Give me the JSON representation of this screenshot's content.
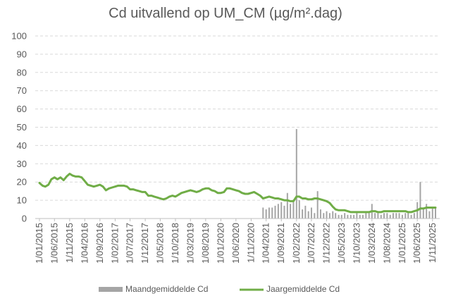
{
  "chart_data": {
    "type": "bar+line",
    "title": "Cd uitvallend op UM_CM (µg/m².dag)",
    "xlabel": "",
    "ylabel": "",
    "ylim": [
      0,
      100
    ],
    "y_ticks": [
      0,
      10,
      20,
      30,
      40,
      50,
      60,
      70,
      80,
      90,
      100
    ],
    "x_range": [
      "2015-01-01",
      "2025-12-01"
    ],
    "x_tick_labels": [
      "1/01/2015",
      "1/06/2015",
      "1/11/2015",
      "1/04/2016",
      "1/09/2016",
      "1/02/2017",
      "1/07/2017",
      "1/12/2017",
      "1/05/2018",
      "1/10/2018",
      "1/03/2019",
      "1/08/2019",
      "1/01/2020",
      "1/06/2020",
      "1/11/2020",
      "1/04/2021",
      "1/09/2021",
      "1/02/2022",
      "1/07/2022",
      "1/12/2022",
      "1/05/2023",
      "1/10/2023",
      "1/03/2024",
      "1/08/2024",
      "1/01/2025",
      "1/06/2025",
      "1/11/2025"
    ],
    "grid": "horizontal dashed",
    "legend": "bottom",
    "colors": {
      "bar": "#a5a5a5",
      "line": "#70ad47",
      "grid": "#d9d9d9",
      "axis": "#bfbfbf"
    },
    "series": [
      {
        "name": "Maandgemiddelde Cd",
        "kind": "bar",
        "points": [
          [
            "2021-03-01",
            6
          ],
          [
            "2021-04-01",
            5
          ],
          [
            "2021-05-01",
            6
          ],
          [
            "2021-06-01",
            6
          ],
          [
            "2021-07-01",
            7
          ],
          [
            "2021-08-01",
            8
          ],
          [
            "2021-09-01",
            9
          ],
          [
            "2021-10-01",
            7
          ],
          [
            "2021-11-01",
            14
          ],
          [
            "2021-12-01",
            8
          ],
          [
            "2022-01-01",
            9
          ],
          [
            "2022-02-01",
            49
          ],
          [
            "2022-03-01",
            10
          ],
          [
            "2022-04-01",
            5
          ],
          [
            "2022-05-01",
            7
          ],
          [
            "2022-06-01",
            4
          ],
          [
            "2022-07-01",
            6
          ],
          [
            "2022-08-01",
            3
          ],
          [
            "2022-09-01",
            15
          ],
          [
            "2022-10-01",
            5
          ],
          [
            "2022-11-01",
            3
          ],
          [
            "2022-12-01",
            4
          ],
          [
            "2023-01-01",
            3
          ],
          [
            "2023-02-01",
            4
          ],
          [
            "2023-03-01",
            3
          ],
          [
            "2023-04-01",
            2
          ],
          [
            "2023-05-01",
            2
          ],
          [
            "2023-06-01",
            3
          ],
          [
            "2023-07-01",
            2
          ],
          [
            "2023-08-01",
            2
          ],
          [
            "2023-09-01",
            2
          ],
          [
            "2023-10-01",
            3
          ],
          [
            "2023-11-01",
            2
          ],
          [
            "2023-12-01",
            2
          ],
          [
            "2024-01-01",
            3
          ],
          [
            "2024-02-01",
            3
          ],
          [
            "2024-03-01",
            8
          ],
          [
            "2024-04-01",
            3
          ],
          [
            "2024-05-01",
            3
          ],
          [
            "2024-06-01",
            2
          ],
          [
            "2024-07-01",
            3
          ],
          [
            "2024-08-01",
            3
          ],
          [
            "2024-09-01",
            2
          ],
          [
            "2024-10-01",
            3
          ],
          [
            "2024-11-01",
            3
          ],
          [
            "2024-12-01",
            3
          ],
          [
            "2025-01-01",
            2
          ],
          [
            "2025-02-01",
            3
          ],
          [
            "2025-03-01",
            3
          ],
          [
            "2025-04-01",
            2
          ],
          [
            "2025-05-01",
            3
          ],
          [
            "2025-06-01",
            9
          ],
          [
            "2025-07-01",
            20
          ],
          [
            "2025-08-01",
            5
          ],
          [
            "2025-09-01",
            8
          ],
          [
            "2025-10-01",
            4
          ],
          [
            "2025-11-01",
            6
          ],
          [
            "2025-12-01",
            6
          ]
        ]
      },
      {
        "name": "Jaargemiddelde Cd",
        "kind": "line",
        "points": [
          [
            "2015-01-01",
            19.5
          ],
          [
            "2015-02-01",
            18
          ],
          [
            "2015-03-01",
            17.5
          ],
          [
            "2015-04-01",
            18.5
          ],
          [
            "2015-05-01",
            21.5
          ],
          [
            "2015-06-01",
            22.5
          ],
          [
            "2015-07-01",
            21.5
          ],
          [
            "2015-08-01",
            22.5
          ],
          [
            "2015-09-01",
            21
          ],
          [
            "2015-10-01",
            23
          ],
          [
            "2015-11-01",
            24.5
          ],
          [
            "2015-12-01",
            23.5
          ],
          [
            "2016-01-01",
            23
          ],
          [
            "2016-02-01",
            23
          ],
          [
            "2016-03-01",
            22.5
          ],
          [
            "2016-04-01",
            20.5
          ],
          [
            "2016-05-01",
            18.5
          ],
          [
            "2016-06-01",
            18
          ],
          [
            "2016-07-01",
            17.5
          ],
          [
            "2016-08-01",
            18
          ],
          [
            "2016-09-01",
            18.5
          ],
          [
            "2016-10-01",
            17.5
          ],
          [
            "2016-11-01",
            15.5
          ],
          [
            "2016-12-01",
            16.5
          ],
          [
            "2017-01-01",
            17
          ],
          [
            "2017-02-01",
            17.5
          ],
          [
            "2017-03-01",
            18
          ],
          [
            "2017-04-01",
            18
          ],
          [
            "2017-05-01",
            18
          ],
          [
            "2017-06-01",
            17.5
          ],
          [
            "2017-07-01",
            16
          ],
          [
            "2017-08-01",
            16
          ],
          [
            "2017-09-01",
            15.5
          ],
          [
            "2017-10-01",
            15
          ],
          [
            "2017-11-01",
            14.5
          ],
          [
            "2017-12-01",
            14.5
          ],
          [
            "2018-01-01",
            12.5
          ],
          [
            "2018-02-01",
            12.5
          ],
          [
            "2018-03-01",
            12
          ],
          [
            "2018-04-01",
            11.5
          ],
          [
            "2018-05-01",
            11
          ],
          [
            "2018-06-01",
            10.5
          ],
          [
            "2018-07-01",
            11
          ],
          [
            "2018-08-01",
            12
          ],
          [
            "2018-09-01",
            12.5
          ],
          [
            "2018-10-01",
            12
          ],
          [
            "2018-11-01",
            13
          ],
          [
            "2018-12-01",
            14
          ],
          [
            "2019-01-01",
            14.5
          ],
          [
            "2019-02-01",
            15
          ],
          [
            "2019-03-01",
            15.5
          ],
          [
            "2019-04-01",
            15
          ],
          [
            "2019-05-01",
            14.5
          ],
          [
            "2019-06-01",
            15
          ],
          [
            "2019-07-01",
            16
          ],
          [
            "2019-08-01",
            16.5
          ],
          [
            "2019-09-01",
            16.5
          ],
          [
            "2019-10-01",
            15.5
          ],
          [
            "2019-11-01",
            15
          ],
          [
            "2019-12-01",
            14
          ],
          [
            "2020-01-01",
            14
          ],
          [
            "2020-02-01",
            14.5
          ],
          [
            "2020-03-01",
            16.5
          ],
          [
            "2020-04-01",
            16.5
          ],
          [
            "2020-05-01",
            16
          ],
          [
            "2020-06-01",
            15.5
          ],
          [
            "2020-07-01",
            15
          ],
          [
            "2020-08-01",
            14
          ],
          [
            "2020-09-01",
            13.5
          ],
          [
            "2020-10-01",
            13.5
          ],
          [
            "2020-11-01",
            14
          ],
          [
            "2020-12-01",
            14.5
          ],
          [
            "2021-01-01",
            13.5
          ],
          [
            "2021-02-01",
            12.5
          ],
          [
            "2021-03-01",
            11
          ],
          [
            "2021-04-01",
            11.5
          ],
          [
            "2021-05-01",
            12
          ],
          [
            "2021-06-01",
            11.5
          ],
          [
            "2021-07-01",
            11
          ],
          [
            "2021-08-01",
            11
          ],
          [
            "2021-09-01",
            10.5
          ],
          [
            "2021-10-01",
            10
          ],
          [
            "2021-11-01",
            10
          ],
          [
            "2021-12-01",
            9.5
          ],
          [
            "2022-01-01",
            9.5
          ],
          [
            "2022-02-01",
            12
          ],
          [
            "2022-03-01",
            12
          ],
          [
            "2022-04-01",
            11
          ],
          [
            "2022-05-01",
            11
          ],
          [
            "2022-06-01",
            10.5
          ],
          [
            "2022-07-01",
            10.5
          ],
          [
            "2022-08-01",
            11
          ],
          [
            "2022-09-01",
            11
          ],
          [
            "2022-10-01",
            10.5
          ],
          [
            "2022-11-01",
            10
          ],
          [
            "2022-12-01",
            9.5
          ],
          [
            "2023-01-01",
            8.5
          ],
          [
            "2023-02-01",
            6.5
          ],
          [
            "2023-03-01",
            5
          ],
          [
            "2023-04-01",
            4.5
          ],
          [
            "2023-05-01",
            4.5
          ],
          [
            "2023-06-01",
            4.5
          ],
          [
            "2023-07-01",
            4
          ],
          [
            "2023-08-01",
            3.5
          ],
          [
            "2023-09-01",
            3.5
          ],
          [
            "2023-10-01",
            3.5
          ],
          [
            "2023-11-01",
            3.5
          ],
          [
            "2023-12-01",
            3.5
          ],
          [
            "2024-01-01",
            3.5
          ],
          [
            "2024-02-01",
            3.5
          ],
          [
            "2024-03-01",
            4
          ],
          [
            "2024-04-01",
            4
          ],
          [
            "2024-05-01",
            3.5
          ],
          [
            "2024-06-01",
            3.5
          ],
          [
            "2024-07-01",
            4
          ],
          [
            "2024-08-01",
            4
          ],
          [
            "2024-09-01",
            4
          ],
          [
            "2024-10-01",
            4
          ],
          [
            "2024-11-01",
            4
          ],
          [
            "2024-12-01",
            4
          ],
          [
            "2025-01-01",
            4
          ],
          [
            "2025-02-01",
            4
          ],
          [
            "2025-03-01",
            3.5
          ],
          [
            "2025-04-01",
            3.5
          ],
          [
            "2025-05-01",
            4
          ],
          [
            "2025-06-01",
            4.5
          ],
          [
            "2025-07-01",
            5.5
          ],
          [
            "2025-08-01",
            5.5
          ],
          [
            "2025-09-01",
            6
          ],
          [
            "2025-10-01",
            6
          ],
          [
            "2025-11-01",
            6
          ],
          [
            "2025-12-01",
            6
          ]
        ]
      }
    ]
  }
}
